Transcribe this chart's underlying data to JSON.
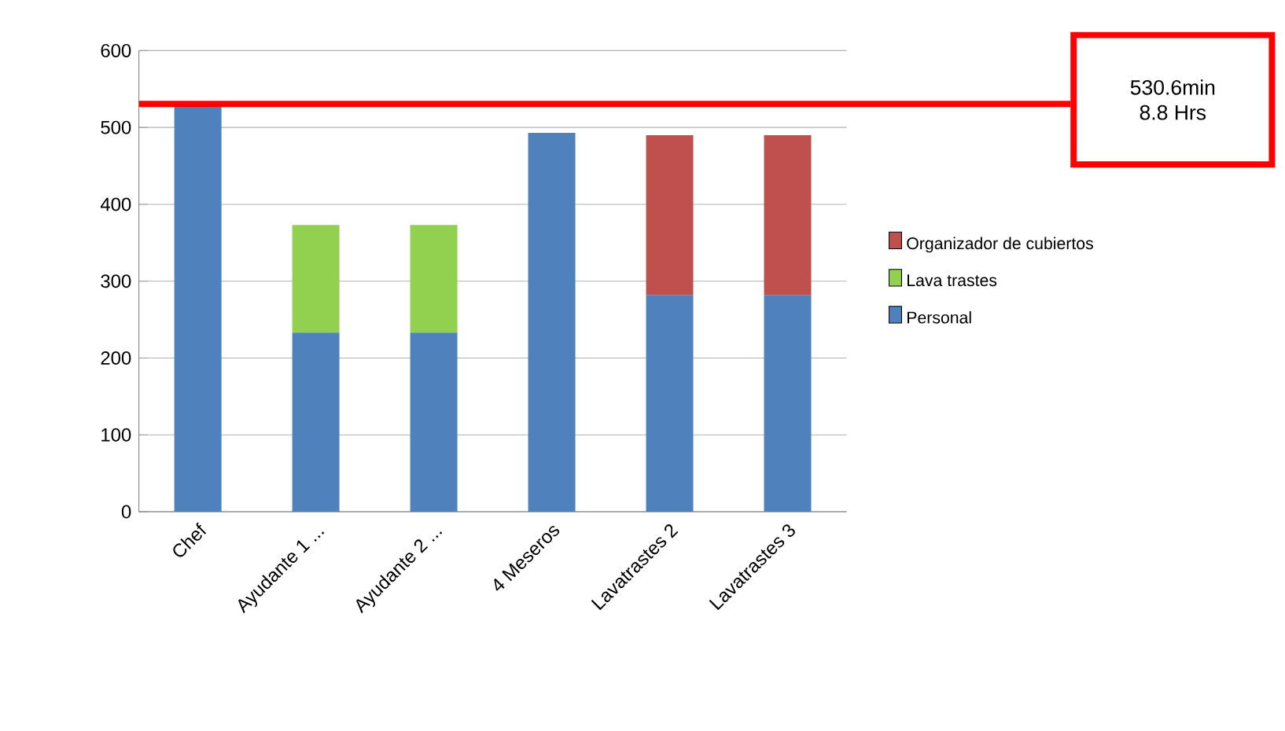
{
  "chart_data": {
    "type": "bar",
    "stacked": true,
    "categories": [
      "Chef",
      "Ayudante 1 ...",
      "Ayudante 2 ...",
      "4 Meseros",
      "Lavatrastes 2",
      "Lavatrastes 3"
    ],
    "series": [
      {
        "name": "Personal",
        "color": "#4f81bd",
        "values": [
          530,
          233,
          233,
          493,
          282,
          282
        ]
      },
      {
        "name": "Lava trastes",
        "color": "#92d050",
        "values": [
          null,
          140,
          140,
          null,
          null,
          null
        ]
      },
      {
        "name": "Organizador de cubiertos",
        "color": "#c0504d",
        "values": [
          null,
          null,
          null,
          null,
          208,
          208
        ]
      }
    ],
    "ylim": [
      0,
      600
    ],
    "yticks": [
      0,
      100,
      200,
      300,
      400,
      500,
      600
    ],
    "grid": "y",
    "legend": "right",
    "ref_lines": [
      {
        "axis": "y",
        "value": 530.6,
        "label": "530.6min",
        "color": "#ff0000"
      }
    ],
    "annotations": [
      "8.8 Hrs"
    ]
  }
}
